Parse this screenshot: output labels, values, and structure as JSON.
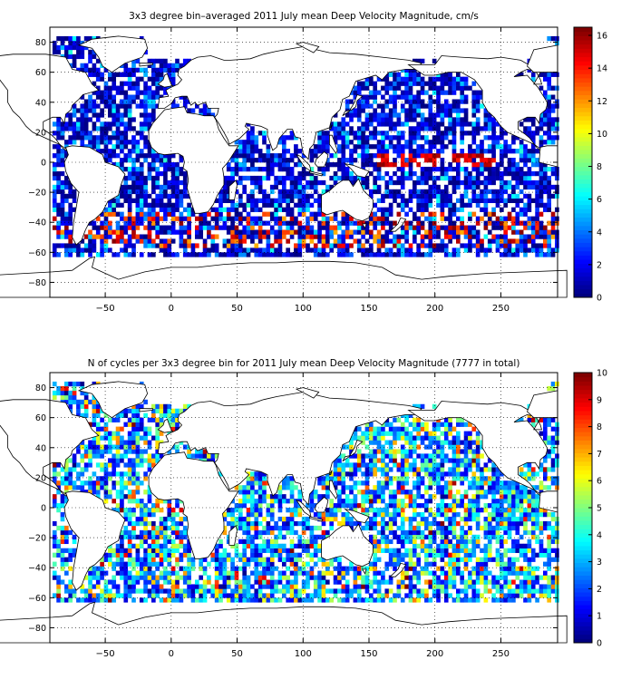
{
  "chart_data": [
    {
      "type": "heatmap",
      "title": "3x3 degree bin–averaged 2011 July mean Deep Velocity Magnitude, cm/s",
      "xlabel": "",
      "ylabel": "",
      "xlim": [
        -92,
        293
      ],
      "ylim": [
        -90,
        90
      ],
      "xticks": [
        -50,
        0,
        50,
        100,
        150,
        200,
        250
      ],
      "yticks": [
        -80,
        -60,
        -40,
        -20,
        0,
        20,
        40,
        60,
        80
      ],
      "grid": true,
      "colormap": "jet",
      "colorbar": {
        "min": 0,
        "max": 16.5,
        "ticks": [
          0,
          2,
          4,
          6,
          8,
          10,
          12,
          14,
          16
        ]
      },
      "bin_size_deg": 3
    },
    {
      "type": "heatmap",
      "title": "N of cycles per 3x3 degree bin for 2011 July mean Deep Velocity Magnitude (7777 in total)",
      "xlabel": "",
      "ylabel": "",
      "xlim": [
        -92,
        293
      ],
      "ylim": [
        -90,
        90
      ],
      "xticks": [
        -50,
        0,
        50,
        100,
        150,
        200,
        250
      ],
      "yticks": [
        -80,
        -60,
        -40,
        -20,
        0,
        20,
        40,
        60,
        80
      ],
      "grid": true,
      "colormap": "jet",
      "colorbar": {
        "min": 0,
        "max": 10,
        "ticks": [
          0,
          1,
          2,
          3,
          4,
          5,
          6,
          7,
          8,
          9,
          10
        ]
      },
      "bin_size_deg": 3
    }
  ]
}
